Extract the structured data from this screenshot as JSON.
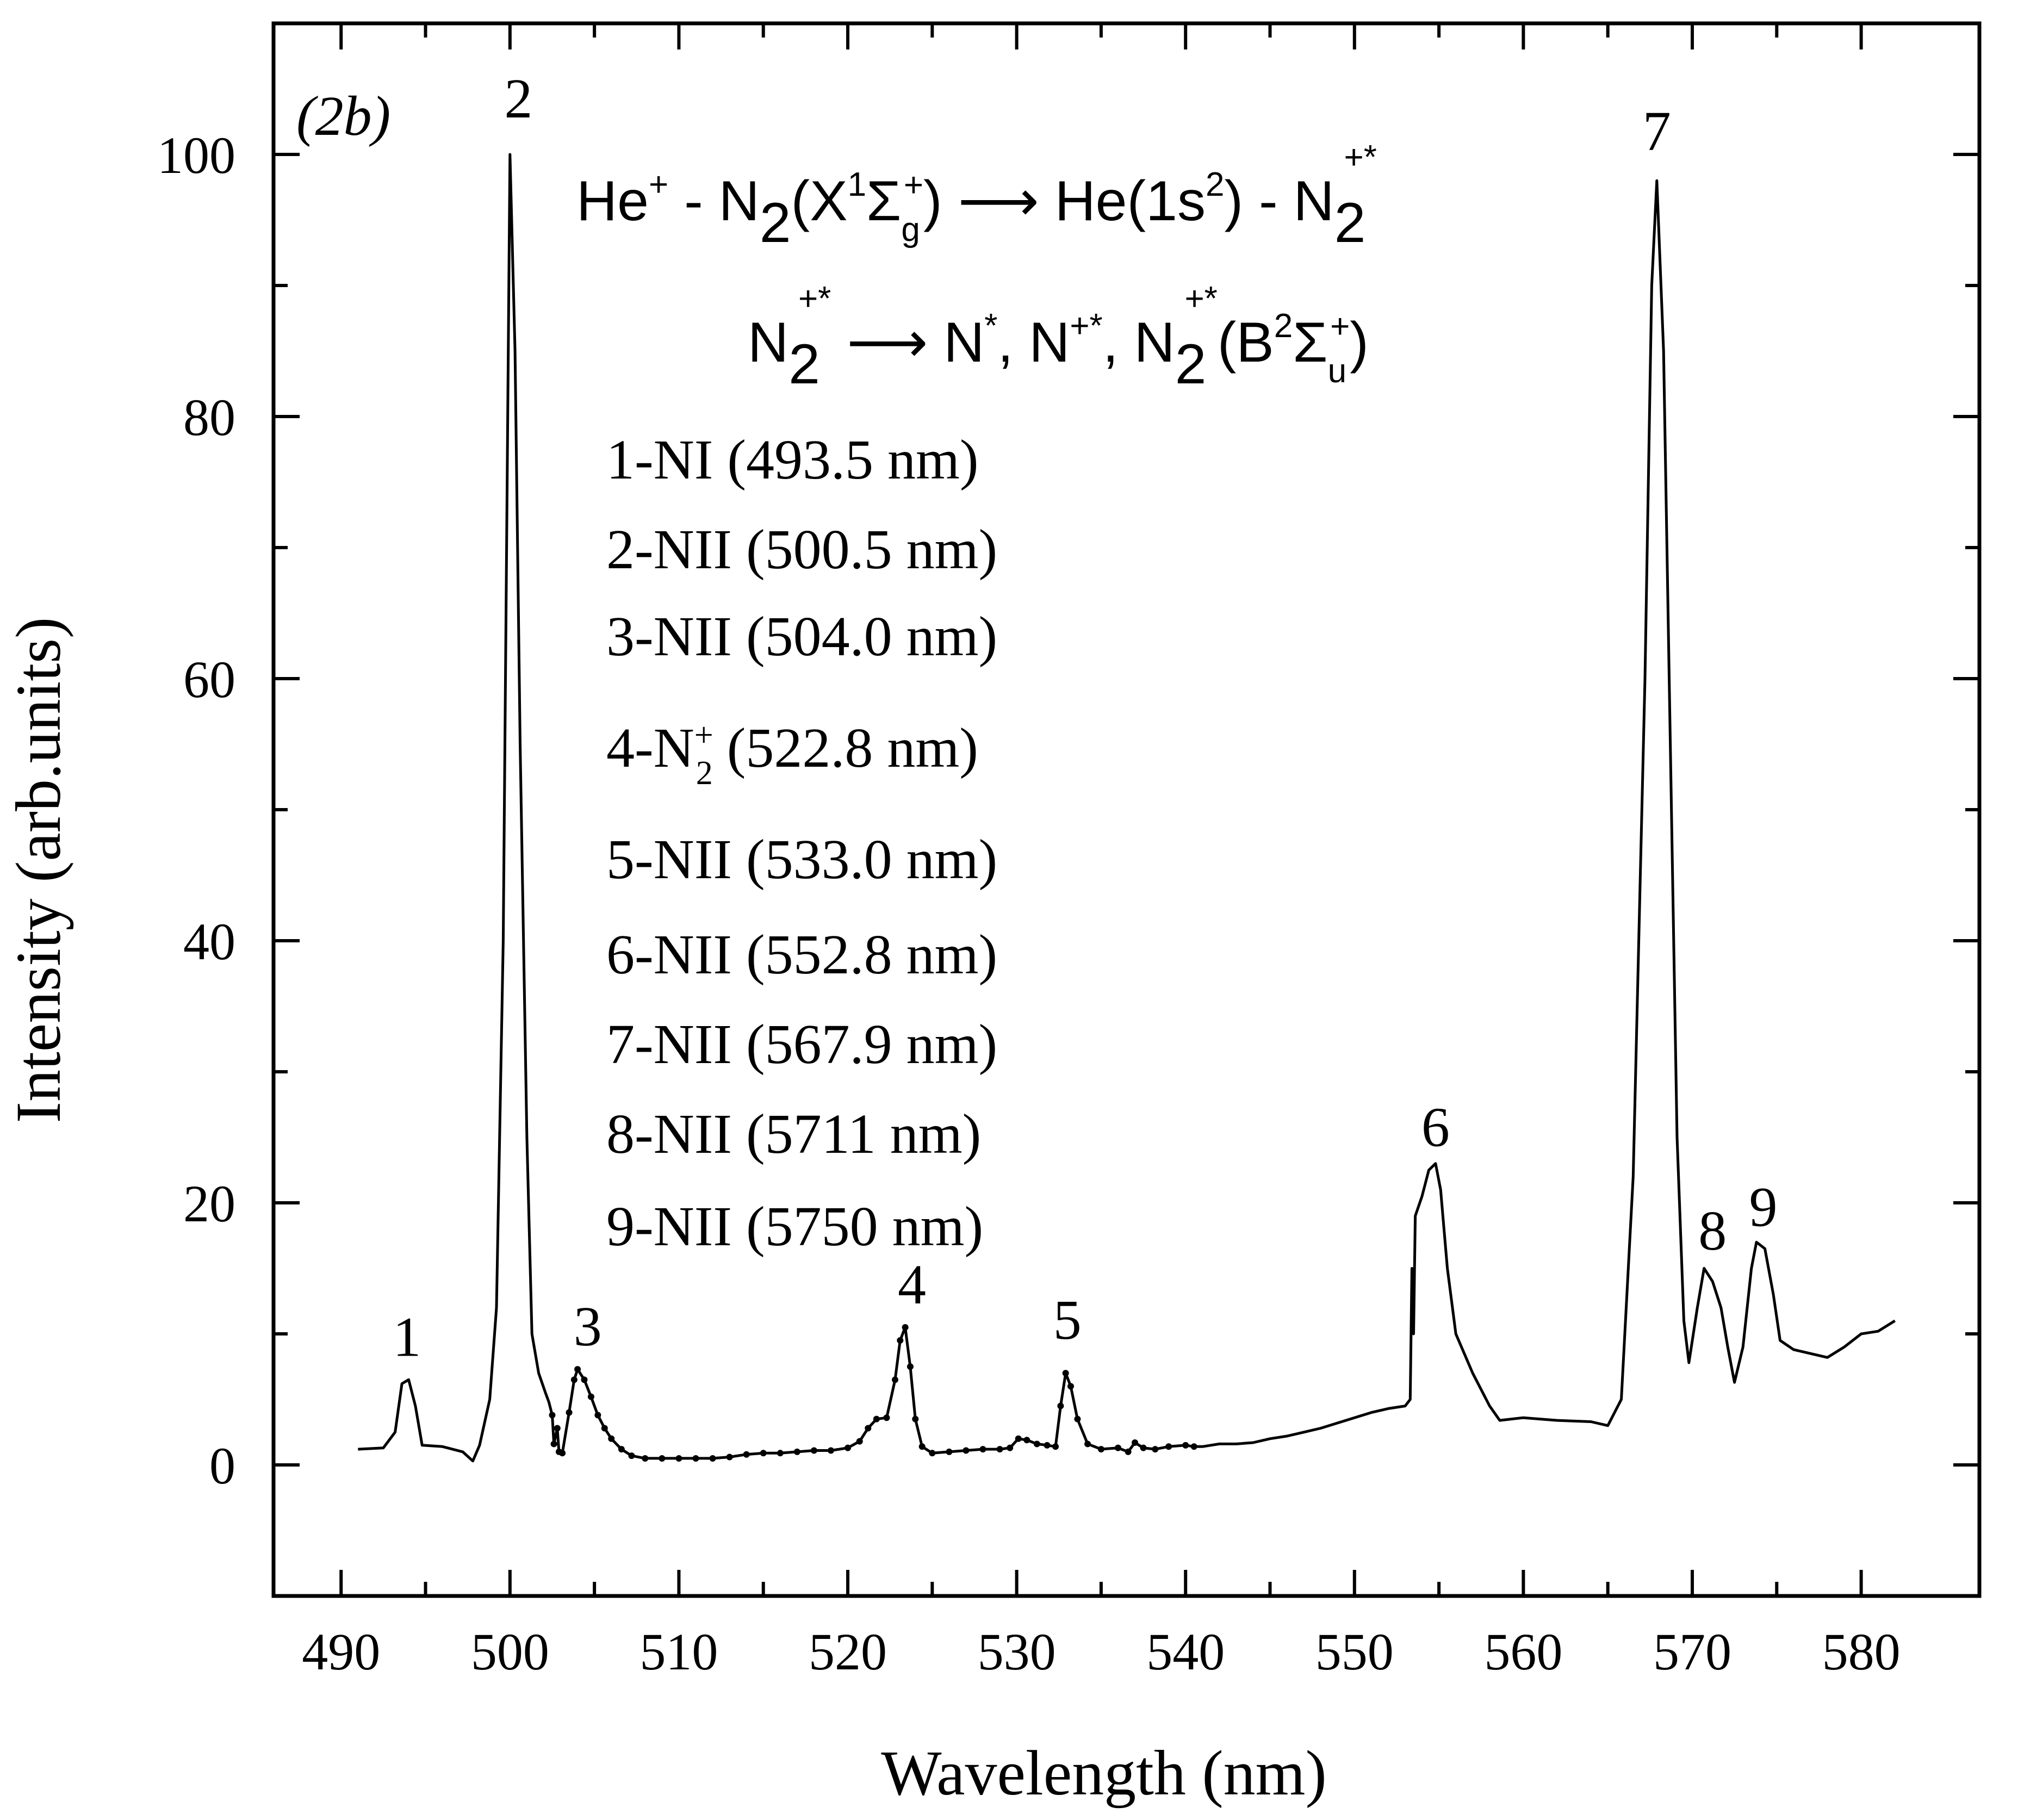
{
  "chart_data": {
    "type": "line",
    "panel_label": "(2b)",
    "xlabel": "Wavelength (nm)",
    "ylabel": "Intensity (arb.units)",
    "xlim": [
      486,
      587
    ],
    "ylim": [
      -10,
      110
    ],
    "xticks": [
      490,
      500,
      510,
      520,
      530,
      540,
      550,
      560,
      570,
      580
    ],
    "yticks": [
      0,
      20,
      40,
      60,
      80,
      100
    ],
    "grid": false,
    "series": [
      {
        "points": [
          [
            491.0,
            1.2
          ],
          [
            492.5,
            1.3
          ],
          [
            493.2,
            2.5
          ],
          [
            493.6,
            6.2
          ],
          [
            494.0,
            6.5
          ],
          [
            494.4,
            4.5
          ],
          [
            494.8,
            1.5
          ],
          [
            496.0,
            1.4
          ],
          [
            497.2,
            1.0
          ],
          [
            497.8,
            0.3
          ],
          [
            498.2,
            1.5
          ],
          [
            498.8,
            5.0
          ],
          [
            499.2,
            12.0
          ],
          [
            499.6,
            40.0
          ],
          [
            500.0,
            100.0
          ],
          [
            500.3,
            85.0
          ],
          [
            500.6,
            55.0
          ],
          [
            501.0,
            25.0
          ],
          [
            501.3,
            10.0
          ],
          [
            501.7,
            7.0
          ],
          [
            502.1,
            5.5
          ],
          [
            502.3,
            4.8
          ],
          [
            502.5,
            3.8
          ],
          [
            502.6,
            1.6
          ],
          [
            502.8,
            2.8
          ],
          [
            502.9,
            1.0
          ],
          [
            503.1,
            0.9
          ],
          [
            503.5,
            4.0
          ],
          [
            503.8,
            6.5
          ],
          [
            504.0,
            7.3
          ],
          [
            504.4,
            6.5
          ],
          [
            504.8,
            5.2
          ],
          [
            505.2,
            3.8
          ],
          [
            505.6,
            2.8
          ],
          [
            506.0,
            2.0
          ],
          [
            506.6,
            1.2
          ],
          [
            507.2,
            0.7
          ],
          [
            508.0,
            0.5
          ],
          [
            509.0,
            0.5
          ],
          [
            510.0,
            0.5
          ],
          [
            511.0,
            0.5
          ],
          [
            512.0,
            0.5
          ],
          [
            513.0,
            0.6
          ],
          [
            514.0,
            0.8
          ],
          [
            515.0,
            0.9
          ],
          [
            516.0,
            0.9
          ],
          [
            517.0,
            1.0
          ],
          [
            518.0,
            1.1
          ],
          [
            519.0,
            1.1
          ],
          [
            520.0,
            1.3
          ],
          [
            520.7,
            1.8
          ],
          [
            521.2,
            2.8
          ],
          [
            521.7,
            3.5
          ],
          [
            522.3,
            3.6
          ],
          [
            522.8,
            6.5
          ],
          [
            523.1,
            9.5
          ],
          [
            523.4,
            10.5
          ],
          [
            523.7,
            7.5
          ],
          [
            524.0,
            3.5
          ],
          [
            524.4,
            1.4
          ],
          [
            525.0,
            0.9
          ],
          [
            526.0,
            1.0
          ],
          [
            527.0,
            1.1
          ],
          [
            528.0,
            1.2
          ],
          [
            529.0,
            1.2
          ],
          [
            529.6,
            1.3
          ],
          [
            530.1,
            2.0
          ],
          [
            530.6,
            1.9
          ],
          [
            531.2,
            1.6
          ],
          [
            531.8,
            1.5
          ],
          [
            532.3,
            1.4
          ],
          [
            532.6,
            4.5
          ],
          [
            532.9,
            7.0
          ],
          [
            533.2,
            6.0
          ],
          [
            533.6,
            3.5
          ],
          [
            534.2,
            1.6
          ],
          [
            535.0,
            1.2
          ],
          [
            536.0,
            1.3
          ],
          [
            536.6,
            1.0
          ],
          [
            537.0,
            1.7
          ],
          [
            537.5,
            1.3
          ],
          [
            538.2,
            1.2
          ],
          [
            539.0,
            1.4
          ],
          [
            540.0,
            1.5
          ],
          [
            540.5,
            1.4
          ],
          [
            541.0,
            1.4
          ],
          [
            542.0,
            1.6
          ],
          [
            543.0,
            1.6
          ],
          [
            544.0,
            1.7
          ],
          [
            545.0,
            2.0
          ],
          [
            546.0,
            2.2
          ],
          [
            547.0,
            2.5
          ],
          [
            548.0,
            2.8
          ],
          [
            549.0,
            3.2
          ],
          [
            550.0,
            3.6
          ],
          [
            551.0,
            4.0
          ],
          [
            552.0,
            4.3
          ],
          [
            553.0,
            4.5
          ],
          [
            553.3,
            5.0
          ],
          [
            553.4,
            15.0
          ],
          [
            553.5,
            10.0
          ],
          [
            553.6,
            19.0
          ],
          [
            554.0,
            20.5
          ],
          [
            554.4,
            22.5
          ],
          [
            554.8,
            23.0
          ],
          [
            555.1,
            21.0
          ],
          [
            555.5,
            15.0
          ],
          [
            556.0,
            10.0
          ],
          [
            557.0,
            7.0
          ],
          [
            558.0,
            4.5
          ],
          [
            558.6,
            3.4
          ],
          [
            560.0,
            3.6
          ],
          [
            562.0,
            3.4
          ],
          [
            564.0,
            3.3
          ],
          [
            565.0,
            3.0
          ],
          [
            565.8,
            5.0
          ],
          [
            566.5,
            22.0
          ],
          [
            567.2,
            60.0
          ],
          [
            567.6,
            90.0
          ],
          [
            567.9,
            98.0
          ],
          [
            568.3,
            85.0
          ],
          [
            568.7,
            55.0
          ],
          [
            569.1,
            25.0
          ],
          [
            569.5,
            11.0
          ],
          [
            569.8,
            7.8
          ],
          [
            570.3,
            12.0
          ],
          [
            570.7,
            15.0
          ],
          [
            571.2,
            14.0
          ],
          [
            571.7,
            12.0
          ],
          [
            572.1,
            9.0
          ],
          [
            572.5,
            6.3
          ],
          [
            573.0,
            9.0
          ],
          [
            573.5,
            15.0
          ],
          [
            573.8,
            17.0
          ],
          [
            574.3,
            16.5
          ],
          [
            574.8,
            13.0
          ],
          [
            575.2,
            9.5
          ],
          [
            576.0,
            8.8
          ],
          [
            577.0,
            8.5
          ],
          [
            578.0,
            8.2
          ],
          [
            579.0,
            9.0
          ],
          [
            580.0,
            10.0
          ],
          [
            581.0,
            10.2
          ],
          [
            582.0,
            11.0
          ]
        ]
      }
    ],
    "peak_labels": [
      {
        "text": "1",
        "x": 493.9,
        "y": 7.5
      },
      {
        "text": "2",
        "x": 500.5,
        "y": 102.0
      },
      {
        "text": "3",
        "x": 504.6,
        "y": 8.3
      },
      {
        "text": "4",
        "x": 523.8,
        "y": 11.5
      },
      {
        "text": "5",
        "x": 533.0,
        "y": 8.8
      },
      {
        "text": "6",
        "x": 554.8,
        "y": 23.5
      },
      {
        "text": "7",
        "x": 567.9,
        "y": 99.5
      },
      {
        "text": "8",
        "x": 571.2,
        "y": 15.6
      },
      {
        "text": "9",
        "x": 574.2,
        "y": 17.4
      }
    ],
    "legend_entries": [
      "1-NI (493.5 nm)",
      "2-NII (500.5 nm)",
      "3-NII (504.0 nm)",
      "4-N2+ (522.8 nm)",
      "5-NII (533.0 nm)",
      "6-NII (552.8 nm)",
      "7-NII (567.9 nm)",
      "8-NII (5711 nm)",
      "9-NII (5750 nm)"
    ],
    "annotations": {
      "reaction_1": "He+ - N2(X1Σg+) ⟶ He(1s2) - N2+*",
      "reaction_2": "N2+* ⟶ N*, N+*, N2+*(B2Σu+)"
    }
  }
}
